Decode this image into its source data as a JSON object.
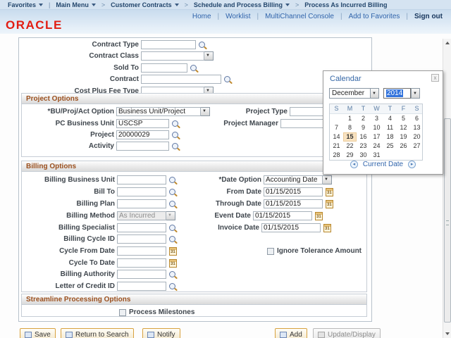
{
  "colors": {
    "oracle_red": "#e21d12",
    "link_blue": "#3064ab",
    "section_title_orange": "#9a4f1d",
    "selection_blue": "#3273dc",
    "selected_day_peach": "#f8e2c0"
  },
  "icons": {
    "lookup": "magnifier-icon",
    "date_prompt": "calendar-31-icon",
    "dropdown": "chevron-down-icon",
    "close": "x"
  },
  "breadcrumb": {
    "items": [
      {
        "label": "Favorites"
      },
      {
        "label": "Main Menu"
      },
      {
        "label": "Customer Contracts"
      },
      {
        "label": "Schedule and Process Billing"
      },
      {
        "label": "Process As Incurred Billing"
      }
    ]
  },
  "header": {
    "logo": "ORACLE",
    "links": [
      "Home",
      "Worklist",
      "MultiChannel Console",
      "Add to Favorites"
    ],
    "sign_out": "Sign out"
  },
  "top_fields": {
    "rows": [
      {
        "label": "Contract Type",
        "value": ""
      },
      {
        "label": "Contract Class",
        "value": ""
      },
      {
        "label": "Sold To",
        "value": ""
      },
      {
        "label": "Contract",
        "value": ""
      },
      {
        "label": "Cost Plus Fee Type",
        "value": ""
      }
    ]
  },
  "project_options": {
    "title": "Project Options",
    "bu_proj_act_label": "*BU/Proj/Act Option",
    "bu_proj_act_value": "Business Unit/Project",
    "project_type_label": "Project Type",
    "pc_business_unit_label": "PC Business Unit",
    "pc_business_unit_value": "USCSP",
    "project_manager_label": "Project Manager",
    "project_label": "Project",
    "project_value": "20000029",
    "activity_label": "Activity",
    "activity_value": ""
  },
  "billing_options": {
    "title": "Billing Options",
    "left_rows": [
      {
        "label": "Billing Business Unit",
        "value": ""
      },
      {
        "label": "Bill To",
        "value": ""
      },
      {
        "label": "Billing Plan",
        "value": ""
      },
      {
        "label": "Billing Method",
        "value": "As Incurred"
      },
      {
        "label": "Billing Specialist",
        "value": ""
      },
      {
        "label": "Billing Cycle ID",
        "value": ""
      },
      {
        "label": "Cycle From Date",
        "value": ""
      },
      {
        "label": "Cycle To Date",
        "value": ""
      },
      {
        "label": "Billing Authority",
        "value": ""
      },
      {
        "label": "Letter of Credit ID",
        "value": ""
      }
    ],
    "right_rows": [
      {
        "label": "*Date Option",
        "value": "Accounting Date"
      },
      {
        "label": "From Date",
        "value": "01/15/2015"
      },
      {
        "label": "Through Date",
        "value": "01/15/2015"
      },
      {
        "label": "Event Date",
        "value": "01/15/2015"
      },
      {
        "label": "Invoice Date",
        "value": "01/15/2015"
      }
    ],
    "ignore_tolerance_label": "Ignore Tolerance Amount"
  },
  "streamline": {
    "title": "Streamline Processing Options",
    "process_milestones_label": "Process Milestones"
  },
  "toolbar": {
    "save": "Save",
    "return_to_search": "Return to Search",
    "notify": "Notify",
    "add": "Add",
    "update_display": "Update/Display"
  },
  "calendar": {
    "title": "Calendar",
    "month": "December",
    "year": "2014",
    "day_headers": [
      "S",
      "M",
      "T",
      "W",
      "T",
      "F",
      "S"
    ],
    "weeks": [
      [
        "",
        "1",
        "2",
        "3",
        "4",
        "5",
        "6"
      ],
      [
        "7",
        "8",
        "9",
        "10",
        "11",
        "12",
        "13"
      ],
      [
        "14",
        "15",
        "16",
        "17",
        "18",
        "19",
        "20"
      ],
      [
        "21",
        "22",
        "23",
        "24",
        "25",
        "26",
        "27"
      ],
      [
        "28",
        "29",
        "30",
        "31",
        "",
        "",
        ""
      ]
    ],
    "selected_day": "15",
    "current_date_label": "Current Date",
    "close_label": "x"
  }
}
